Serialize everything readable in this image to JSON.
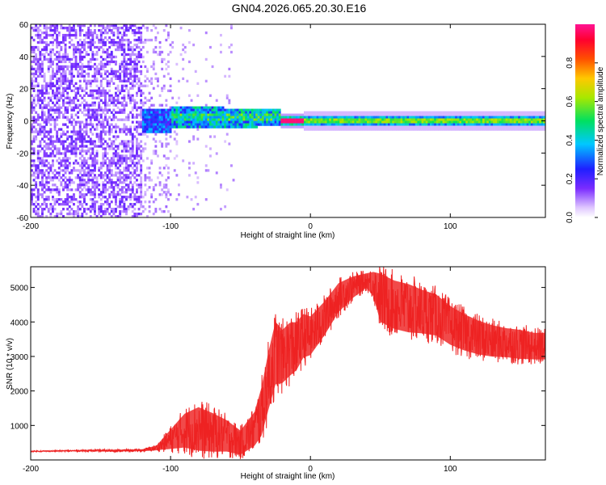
{
  "figure_title": "GN04.2026.065.20.30.E16",
  "chart_data": [
    {
      "type": "heatmap",
      "title": "GN04.2026.065.20.30.E16",
      "xlabel": "Height of straight line (km)",
      "ylabel": "Frequency (Hz)",
      "xlim": [
        -200,
        168
      ],
      "ylim": [
        -60,
        60
      ],
      "x_ticks": [
        "-200",
        "-100",
        "0",
        "100"
      ],
      "y_ticks": [
        "-60",
        "-40",
        "-20",
        "0",
        "20",
        "40",
        "60"
      ],
      "colorbar": {
        "label": "Normalized spectral amplitude",
        "range": [
          0,
          1
        ],
        "ticks": [
          "0.0",
          "0.2",
          "0.4",
          "0.6",
          "0.8"
        ]
      },
      "regions": [
        {
          "x": [
            -200,
            -120
          ],
          "description_level": 0.15
        },
        {
          "x": [
            -120,
            -22
          ],
          "description_level": 0.35
        },
        {
          "x": [
            -22,
            -5
          ],
          "description_level": 1.0
        },
        {
          "x": [
            -5,
            168
          ],
          "description_level": 0.45
        }
      ]
    },
    {
      "type": "line",
      "xlabel": "Height of straight line (km)",
      "ylabel": "SNR (10 * v/v)",
      "xlim": [
        -200,
        168
      ],
      "ylim": [
        0,
        5600
      ],
      "x_ticks": [
        "-200",
        "-100",
        "0",
        "100"
      ],
      "y_ticks": [
        "1000",
        "2000",
        "3000",
        "4000",
        "5000"
      ],
      "color": "#ee2222",
      "series": [
        {
          "x": [
            -200,
            -180,
            -160,
            -140,
            -120,
            -110,
            -100,
            -90,
            -80,
            -70,
            -60,
            -50,
            -40,
            -35,
            -30,
            -25,
            -20,
            -15,
            -10,
            -5,
            0,
            10,
            20,
            30,
            40,
            45,
            50,
            60,
            70,
            80,
            90,
            100,
            110,
            120,
            130,
            140,
            150,
            160,
            168
          ],
          "values": [
            250,
            260,
            270,
            270,
            280,
            350,
            600,
            850,
            900,
            800,
            700,
            500,
            900,
            1400,
            2300,
            3100,
            3000,
            3200,
            3300,
            3600,
            3600,
            4100,
            4700,
            5000,
            5200,
            5100,
            4700,
            4500,
            4400,
            4300,
            4200,
            3900,
            3700,
            3550,
            3450,
            3400,
            3350,
            3300,
            3300
          ],
          "band": [
            20,
            20,
            30,
            40,
            40,
            100,
            400,
            700,
            900,
            800,
            650,
            500,
            700,
            1000,
            1200,
            1300,
            1100,
            1100,
            1000,
            900,
            800,
            700,
            600,
            450,
            300,
            500,
            1000,
            1000,
            1000,
            900,
            850,
            800,
            750,
            700,
            650,
            600,
            600,
            550,
            550
          ]
        }
      ]
    }
  ]
}
